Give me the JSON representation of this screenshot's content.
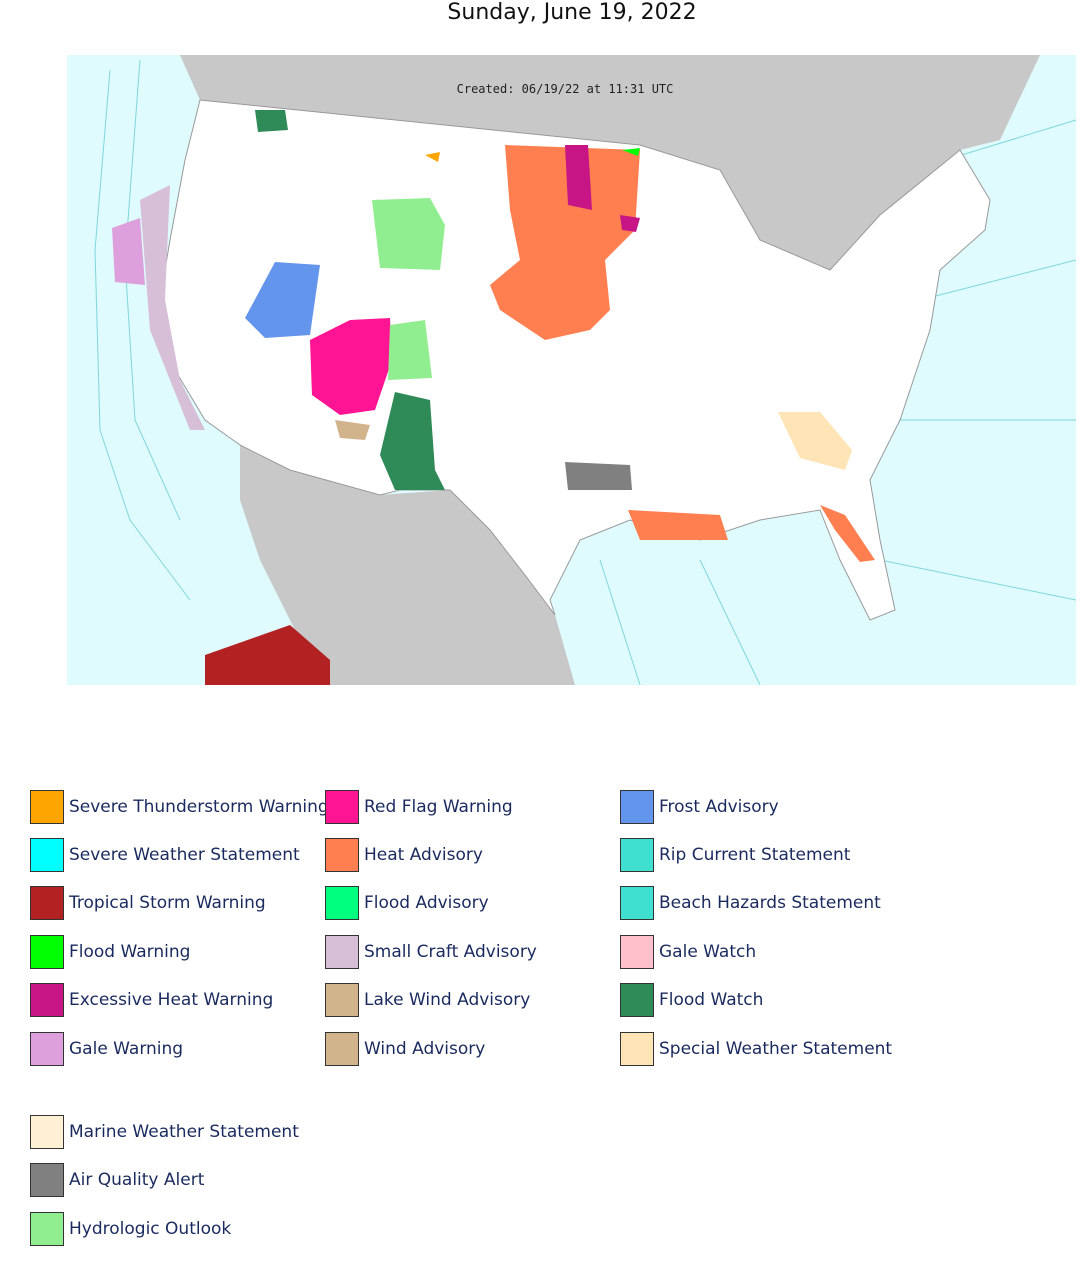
{
  "header": {
    "title": "Sunday, June 19, 2022"
  },
  "map": {
    "created_label": "Created: 06/19/22 at 11:31 UTC"
  },
  "legend": {
    "groups": [
      {
        "items": [
          {
            "label": "Severe Thunderstorm Warning",
            "color": "#FFA500"
          },
          {
            "label": "Severe Weather Statement",
            "color": "#00FFFF"
          },
          {
            "label": "Tropical Storm Warning",
            "color": "#B22222"
          },
          {
            "label": "Flood Warning",
            "color": "#00FF00"
          },
          {
            "label": "Excessive Heat Warning",
            "color": "#C71585"
          },
          {
            "label": "Gale Warning",
            "color": "#DDA0DD"
          },
          {
            "label": "Red Flag Warning",
            "color": "#FF1493"
          },
          {
            "label": "Heat Advisory",
            "color": "#FF7F50"
          },
          {
            "label": "Flood Advisory",
            "color": "#00FF7F"
          },
          {
            "label": "Small Craft Advisory",
            "color": "#D8BFD8"
          },
          {
            "label": "Lake Wind Advisory",
            "color": "#D2B48C"
          },
          {
            "label": "Wind Advisory",
            "color": "#D2B48C"
          },
          {
            "label": "Frost Advisory",
            "color": "#6495ED"
          },
          {
            "label": "Rip Current Statement",
            "color": "#40E0D0"
          },
          {
            "label": "Beach Hazards Statement",
            "color": "#40E0D0"
          },
          {
            "label": "Gale Watch",
            "color": "#FFC0CB"
          },
          {
            "label": "Flood Watch",
            "color": "#2E8B57"
          },
          {
            "label": "Special Weather Statement",
            "color": "#FFE4B5"
          }
        ]
      },
      {
        "items": [
          {
            "label": "Marine Weather Statement",
            "color": "#FFEFD5"
          },
          {
            "label": "Air Quality Alert",
            "color": "#808080"
          },
          {
            "label": "Hydrologic Outlook",
            "color": "#90EE90"
          }
        ]
      }
    ]
  }
}
